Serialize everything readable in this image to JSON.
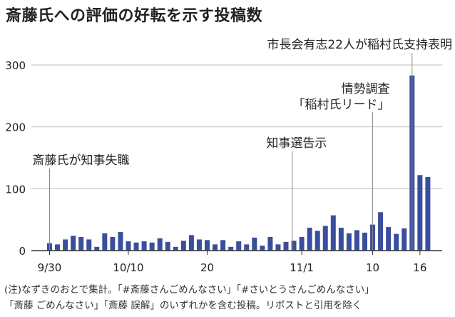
{
  "title": "斎藤氏への評価の好転を示す投稿数",
  "notes": [
    "(注)なずきのおとで集計。「#斎藤さんごめんなさい」「#さいとうさんごめんなさい」",
    "「斎藤 ごめんなさい」「斎藤 誤解」のいずれかを含む投稿。リポストと引用を除く"
  ],
  "colors": {
    "bar": "#3a4e9e",
    "grid": "#bdbdbd",
    "axis": "#333333",
    "annotation_line": "#888888"
  },
  "chart_data": {
    "type": "bar",
    "title": "斎藤氏への評価の好転を示す投稿数",
    "xlabel": "",
    "ylabel": "",
    "ylim": [
      0,
      300
    ],
    "yticks": [
      0,
      100,
      200,
      300
    ],
    "grid": true,
    "categories": [
      "9/30",
      "10/1",
      "10/2",
      "10/3",
      "10/4",
      "10/5",
      "10/6",
      "10/7",
      "10/8",
      "10/9",
      "10/10",
      "10/11",
      "10/12",
      "10/13",
      "10/14",
      "10/15",
      "10/16",
      "10/17",
      "10/18",
      "10/19",
      "10/20",
      "10/21",
      "10/22",
      "10/23",
      "10/24",
      "10/25",
      "10/26",
      "10/27",
      "10/28",
      "10/29",
      "10/30",
      "10/31",
      "11/1",
      "11/2",
      "11/3",
      "11/4",
      "11/5",
      "11/6",
      "11/7",
      "11/8",
      "11/9",
      "11/10",
      "11/11",
      "11/12",
      "11/13",
      "11/14",
      "11/15",
      "11/16",
      "11/17"
    ],
    "values": [
      12,
      10,
      18,
      24,
      22,
      18,
      6,
      28,
      22,
      30,
      15,
      13,
      15,
      13,
      20,
      14,
      6,
      16,
      25,
      18,
      17,
      10,
      17,
      6,
      15,
      10,
      21,
      8,
      22,
      10,
      14,
      16,
      22,
      37,
      32,
      40,
      57,
      37,
      28,
      33,
      29,
      42,
      62,
      38,
      27,
      36,
      283,
      122,
      119
    ],
    "xticks": [
      {
        "index": 0,
        "label": "9/30"
      },
      {
        "index": 10,
        "label": "10/10"
      },
      {
        "index": 20,
        "label": "20"
      },
      {
        "index": 32,
        "label": "11/1"
      },
      {
        "index": 41,
        "label": "10"
      },
      {
        "index": 47,
        "label": "16"
      }
    ],
    "annotations": [
      {
        "index": 0,
        "lines": [
          "斎藤氏が知事失職"
        ],
        "value": 40
      },
      {
        "index": 30.8,
        "lines": [
          "知事選告示"
        ],
        "value": 150
      },
      {
        "index": 41,
        "lines": [
          "情勢調査",
          "「稲村氏リード」"
        ],
        "value": 190
      },
      {
        "index": 46,
        "lines": [
          "市長会有志22人が稲村氏支持表明"
        ],
        "value": 283
      }
    ]
  }
}
